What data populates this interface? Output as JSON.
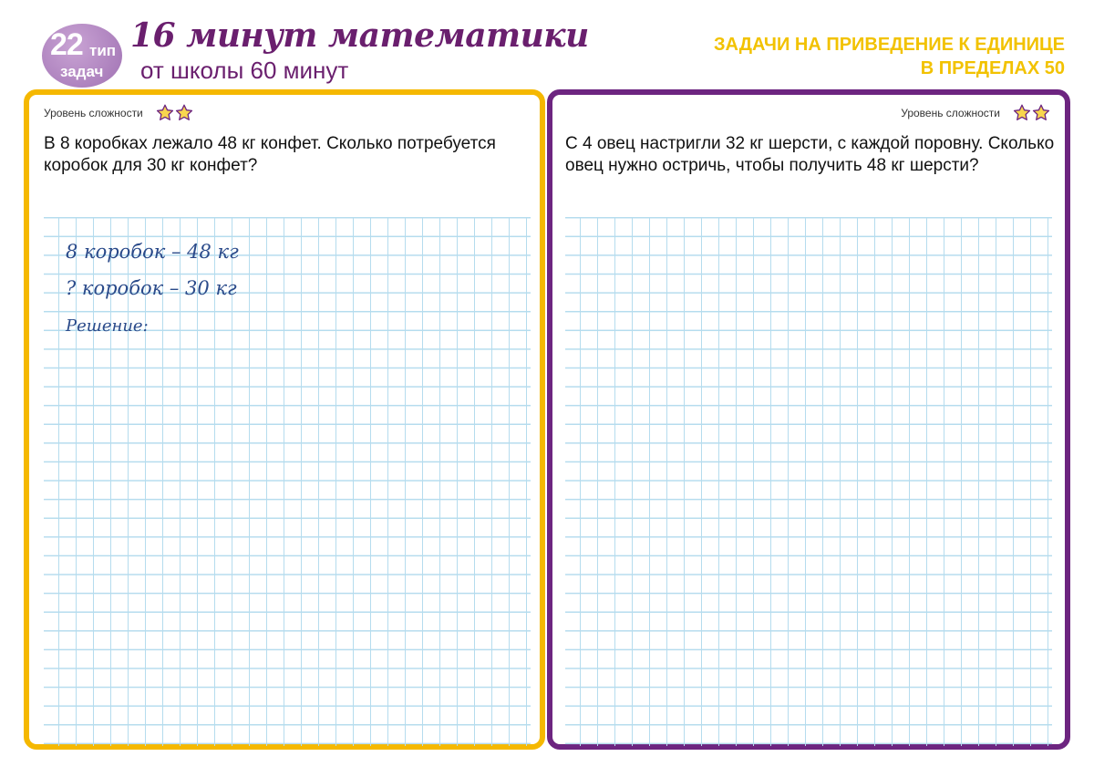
{
  "header": {
    "badge": {
      "number": "22",
      "word1": "тип",
      "word2": "задач"
    },
    "title": "16 минут математики",
    "subtitle": "от школы 60 минут",
    "topic_line1": "ЗАДАЧИ НА ПРИВЕДЕНИЕ К ЕДИНИЦЕ",
    "topic_line2": "В ПРЕДЕЛАХ 50"
  },
  "colors": {
    "left_border": "#f5b800",
    "right_border": "#6d2580",
    "title": "#6a1f6e",
    "topic": "#f2c200",
    "grid": "#b5dcee",
    "handwriting": "#2a4a8a"
  },
  "tasks": [
    {
      "level_label": "Уровень сложности",
      "stars": 2,
      "question": "В 8 коробках лежало 48 кг конфет. Сколько потребуется коробок для 30 кг конфет?",
      "handwriting": [
        "8 коробок – 48 кг",
        "? коробок – 30 кг",
        "Решение:"
      ]
    },
    {
      "level_label": "Уровень сложности",
      "stars": 2,
      "question": "С 4 овец настригли 32 кг шерсти, с каждой поровну. Сколько овец нужно остричь, чтобы получить 48 кг шерсти?"
    }
  ]
}
